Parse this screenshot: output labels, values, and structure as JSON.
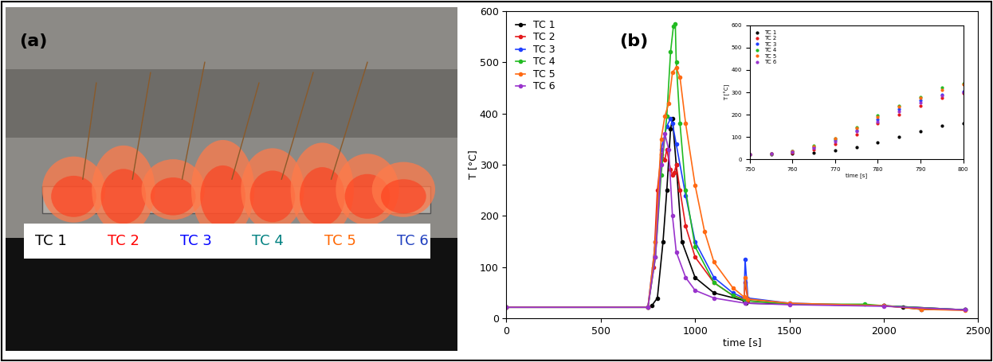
{
  "photo": {
    "panel_label": "(a)",
    "thermocouples": [
      {
        "name": "TC 1",
        "color": "#000000"
      },
      {
        "name": "TC 2",
        "color": "#ff0000"
      },
      {
        "name": "TC 3",
        "color": "#0000ff"
      },
      {
        "name": "TC 4",
        "color": "#008080"
      },
      {
        "name": "TC 5",
        "color": "#ff6600"
      },
      {
        "name": "TC 6",
        "color": "#1f3fbf"
      }
    ]
  },
  "chart_data": [
    {
      "type": "line",
      "annotations": [
        "(b)"
      ],
      "x_label": "time [s]",
      "y_label": "T [°C]",
      "xlim": [
        0,
        2500
      ],
      "xticks": [
        0,
        500,
        1000,
        1500,
        2000,
        2500
      ],
      "ylim": [
        0,
        600
      ],
      "yticks": [
        0,
        100,
        200,
        300,
        400,
        500,
        600
      ],
      "legend": "upper left",
      "marker": "o",
      "line_style": "solid",
      "series": [
        {
          "name": "TC 1",
          "color": "#000000",
          "x": [
            0,
            750,
            770,
            800,
            830,
            850,
            870,
            880,
            900,
            930,
            1000,
            1100,
            1260,
            1270,
            1500,
            2000,
            2100,
            2200,
            2430
          ],
          "values": [
            22,
            22,
            25,
            40,
            150,
            250,
            370,
            390,
            300,
            150,
            80,
            50,
            35,
            30,
            28,
            25,
            22,
            18,
            17
          ]
        },
        {
          "name": "TC 2",
          "color": "#e41a1c",
          "x": [
            0,
            750,
            780,
            800,
            820,
            840,
            850,
            870,
            880,
            890,
            900,
            920,
            950,
            1000,
            1100,
            1200,
            1260,
            1265,
            1280,
            1500,
            2000,
            2430
          ],
          "values": [
            22,
            22,
            100,
            250,
            320,
            310,
            330,
            290,
            280,
            285,
            300,
            250,
            180,
            120,
            70,
            45,
            38,
            70,
            35,
            28,
            25,
            17
          ]
        },
        {
          "name": "TC 3",
          "color": "#1f3fff",
          "x": [
            0,
            750,
            790,
            820,
            850,
            870,
            880,
            900,
            950,
            1000,
            1100,
            1200,
            1260,
            1265,
            1280,
            1500,
            2000,
            2430
          ],
          "values": [
            22,
            22,
            150,
            330,
            375,
            390,
            380,
            340,
            240,
            150,
            80,
            50,
            40,
            115,
            40,
            30,
            25,
            17
          ]
        },
        {
          "name": "TC 4",
          "color": "#22bb22",
          "x": [
            0,
            750,
            790,
            820,
            850,
            870,
            885,
            895,
            900,
            920,
            950,
            1000,
            1100,
            1200,
            1265,
            1500,
            1900,
            2000,
            2430
          ],
          "values": [
            22,
            22,
            120,
            280,
            395,
            520,
            570,
            575,
            500,
            380,
            250,
            140,
            70,
            45,
            35,
            28,
            28,
            25,
            17
          ]
        },
        {
          "name": "TC 5",
          "color": "#ff6a13",
          "x": [
            0,
            750,
            790,
            820,
            840,
            860,
            880,
            900,
            920,
            950,
            1000,
            1050,
            1100,
            1200,
            1260,
            1265,
            1280,
            1500,
            2000,
            2200,
            2430
          ],
          "values": [
            22,
            22,
            150,
            350,
            395,
            420,
            480,
            490,
            470,
            380,
            260,
            170,
            110,
            60,
            42,
            80,
            38,
            30,
            25,
            18,
            16
          ]
        },
        {
          "name": "TC 6",
          "color": "#9933cc",
          "x": [
            0,
            750,
            790,
            820,
            840,
            860,
            880,
            900,
            950,
            1000,
            1100,
            1265,
            1500,
            2000,
            2430
          ],
          "values": [
            22,
            22,
            120,
            300,
            360,
            330,
            200,
            130,
            80,
            55,
            40,
            30,
            27,
            24,
            17
          ]
        }
      ]
    },
    {
      "type": "line",
      "x_label": "time [s]",
      "y_label": "T [°C]",
      "xlim": [
        750,
        800
      ],
      "xticks": [
        750,
        760,
        770,
        780,
        790,
        800
      ],
      "ylim": [
        0,
        600
      ],
      "yticks": [
        0,
        100,
        200,
        300,
        400,
        500,
        600
      ],
      "legend": "upper left",
      "marker": "o",
      "line_style": "none",
      "series": [
        {
          "name": "TC 1",
          "color": "#000000",
          "x": [
            750,
            755,
            760,
            765,
            770,
            775,
            780,
            785,
            790,
            795,
            800
          ],
          "values": [
            22,
            23,
            25,
            30,
            40,
            55,
            75,
            100,
            125,
            150,
            160
          ]
        },
        {
          "name": "TC 2",
          "color": "#e41a1c",
          "x": [
            750,
            755,
            760,
            765,
            770,
            775,
            780,
            785,
            790,
            795,
            800
          ],
          "values": [
            22,
            24,
            30,
            45,
            70,
            110,
            160,
            200,
            240,
            275,
            295
          ]
        },
        {
          "name": "TC 3",
          "color": "#1f3fff",
          "x": [
            750,
            755,
            760,
            765,
            770,
            775,
            780,
            785,
            790,
            795,
            800
          ],
          "values": [
            22,
            25,
            35,
            55,
            85,
            130,
            180,
            225,
            265,
            290,
            305
          ]
        },
        {
          "name": "TC 4",
          "color": "#22bb22",
          "x": [
            750,
            755,
            760,
            765,
            770,
            775,
            780,
            785,
            790,
            795,
            800
          ],
          "values": [
            22,
            26,
            38,
            60,
            95,
            145,
            195,
            240,
            280,
            320,
            340
          ]
        },
        {
          "name": "TC 5",
          "color": "#ff6a13",
          "x": [
            750,
            755,
            760,
            765,
            770,
            775,
            780,
            785,
            790,
            795,
            800
          ],
          "values": [
            22,
            26,
            37,
            58,
            92,
            140,
            190,
            235,
            275,
            310,
            335
          ]
        },
        {
          "name": "TC 6",
          "color": "#9933cc",
          "x": [
            750,
            755,
            760,
            765,
            770,
            775,
            780,
            785,
            790,
            795,
            800
          ],
          "values": [
            22,
            24,
            32,
            50,
            80,
            125,
            170,
            215,
            255,
            285,
            300
          ]
        }
      ]
    }
  ]
}
